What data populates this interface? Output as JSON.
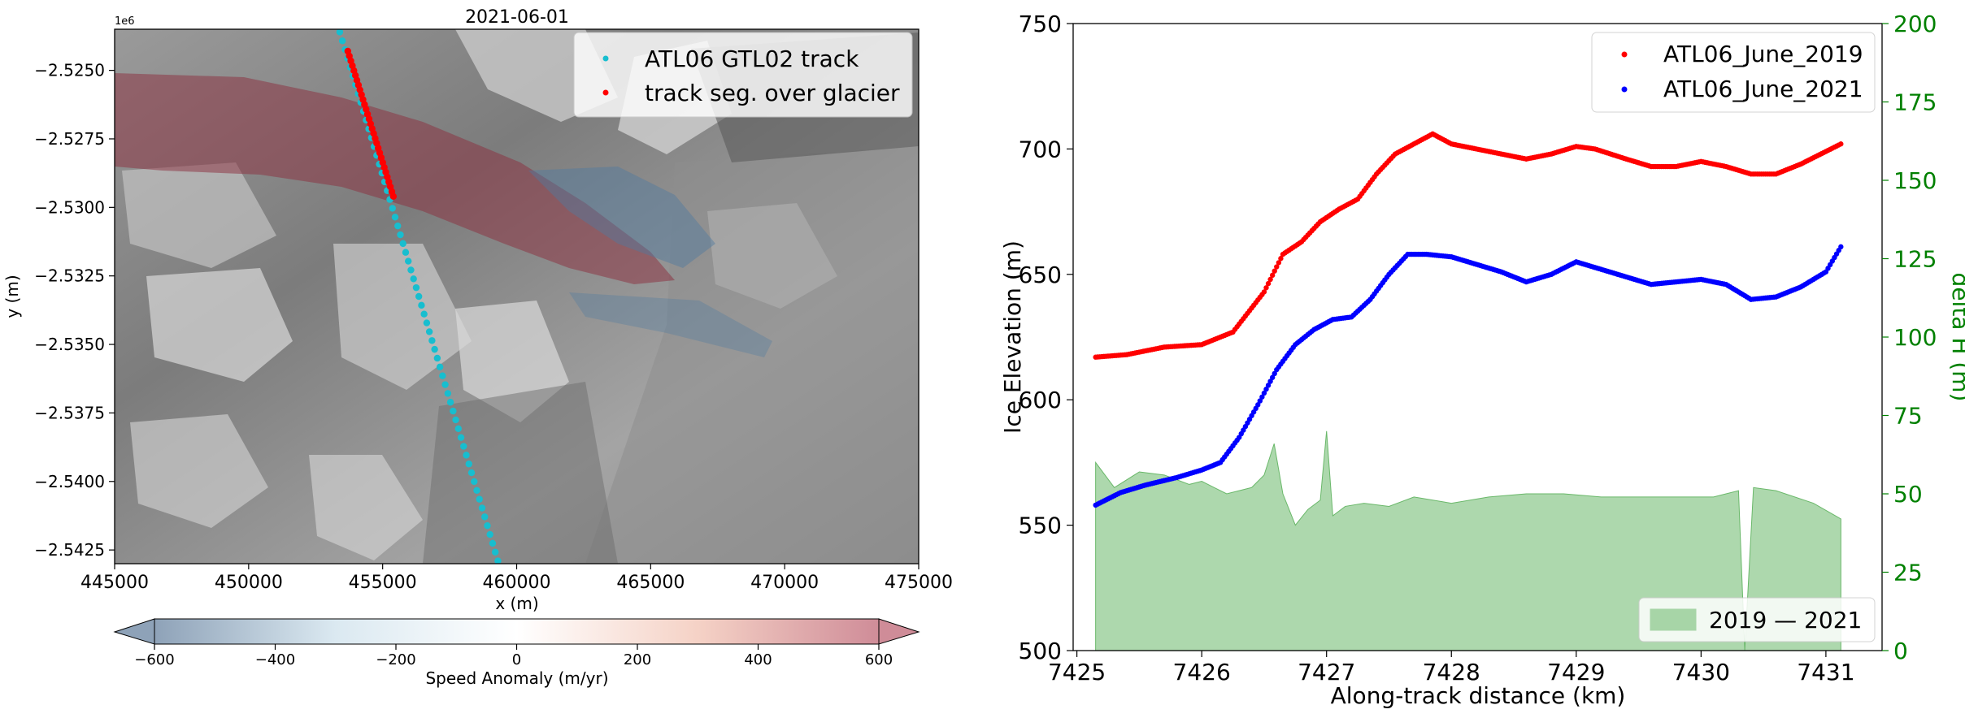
{
  "chart_data": [
    {
      "type": "scatter",
      "title": "2021-06-01",
      "xlabel": "x (m)",
      "ylabel": "y (m)",
      "offset_label": "1e6",
      "xlim": [
        445000,
        475000
      ],
      "ylim": [
        -2.543,
        -2.5235
      ],
      "xticks": [
        445000,
        450000,
        455000,
        460000,
        465000,
        470000,
        475000
      ],
      "xtick_labels": [
        "445000",
        "450000",
        "455000",
        "460000",
        "465000",
        "470000",
        "475000"
      ],
      "yticks": [
        -2.525,
        -2.5275,
        -2.53,
        -2.5325,
        -2.535,
        -2.5375,
        -2.54,
        -2.5425
      ],
      "ytick_labels": [
        "−2.5250",
        "−2.5275",
        "−2.5300",
        "−2.5325",
        "−2.5350",
        "−2.5375",
        "−2.5400",
        "−2.5425"
      ],
      "background": "grayscale satellite image with speed anomaly overlay",
      "series": [
        {
          "name": "ATL06 GTL02 track",
          "color": "#17becf",
          "x_start": 453400,
          "y_start": -2.5236,
          "x_end": 459300,
          "y_end": -2.5429
        },
        {
          "name": "track seg. over glacier",
          "color": "#ff0000",
          "x_start": 453700,
          "y_start": -2.5243,
          "x_end": 455400,
          "y_end": -2.5296
        }
      ],
      "legend": [
        "ATL06 GTL02 track",
        "track seg. over glacier"
      ],
      "legend_position": "top-right",
      "colorbar": {
        "label": "Speed Anomaly (m/yr)",
        "range": [
          -600,
          600
        ],
        "ticks": [
          -600,
          -400,
          -200,
          0,
          200,
          400,
          600
        ],
        "tick_labels": [
          "−600",
          "−400",
          "−200",
          "0",
          "200",
          "400",
          "600"
        ],
        "colors": [
          "#8ea2b8",
          "#dbe9f1",
          "#ffffff",
          "#f5d2c6",
          "#cf8c98"
        ],
        "extend": "both"
      }
    },
    {
      "type": "scatter",
      "xlabel": "Along-track distance (km)",
      "ylabel": "Ice Elevation (m)",
      "y2label": "delta H (m)",
      "xlim": [
        7424.97,
        7431.45
      ],
      "ylim": [
        500,
        750
      ],
      "y2lim": [
        0,
        200
      ],
      "xticks": [
        7425,
        7426,
        7427,
        7428,
        7429,
        7430,
        7431
      ],
      "yticks": [
        500,
        550,
        600,
        650,
        700,
        750
      ],
      "y2ticks": [
        0,
        25,
        50,
        75,
        100,
        125,
        150,
        175,
        200
      ],
      "series": [
        {
          "name": "ATL06_June_2019",
          "color": "#ff0000",
          "x": [
            7425.15,
            7425.4,
            7425.7,
            7426.0,
            7426.25,
            7426.5,
            7426.65,
            7426.8,
            7426.95,
            7427.1,
            7427.25,
            7427.4,
            7427.55,
            7427.7,
            7427.85,
            7428.0,
            7428.2,
            7428.4,
            7428.6,
            7428.8,
            7429.0,
            7429.15,
            7429.4,
            7429.6,
            7429.8,
            7430.0,
            7430.2,
            7430.4,
            7430.6,
            7430.8,
            7431.0,
            7431.12
          ],
          "y": [
            617,
            618,
            621,
            622,
            627,
            643,
            658,
            663,
            671,
            676,
            680,
            690,
            698,
            702,
            706,
            702,
            700,
            698,
            696,
            698,
            701,
            700,
            696,
            693,
            693,
            695,
            693,
            690,
            690,
            694,
            699,
            702
          ]
        },
        {
          "name": "ATL06_June_2021",
          "color": "#0000ff",
          "x": [
            7425.15,
            7425.35,
            7425.55,
            7425.8,
            7426.0,
            7426.15,
            7426.3,
            7426.45,
            7426.6,
            7426.75,
            7426.9,
            7427.05,
            7427.2,
            7427.35,
            7427.5,
            7427.65,
            7427.8,
            7428.0,
            7428.2,
            7428.4,
            7428.6,
            7428.8,
            7429.0,
            7429.2,
            7429.4,
            7429.6,
            7429.8,
            7430.0,
            7430.2,
            7430.4,
            7430.6,
            7430.8,
            7431.0,
            7431.12
          ],
          "y": [
            558,
            563,
            566,
            569,
            572,
            575,
            585,
            598,
            612,
            622,
            628,
            632,
            633,
            640,
            650,
            658,
            658,
            657,
            654,
            651,
            647,
            650,
            655,
            652,
            649,
            646,
            647,
            648,
            646,
            640,
            641,
            645,
            651,
            661
          ]
        },
        {
          "name": "2019 — 2021",
          "kind": "area",
          "axis": "y2",
          "color": "#6ab86a",
          "x": [
            7425.15,
            7425.3,
            7425.5,
            7425.7,
            7425.9,
            7426.0,
            7426.1,
            7426.2,
            7426.3,
            7426.4,
            7426.5,
            7426.58,
            7426.65,
            7426.75,
            7426.85,
            7426.95,
            7427.0,
            7427.05,
            7427.15,
            7427.3,
            7427.5,
            7427.7,
            7428.0,
            7428.3,
            7428.6,
            7428.9,
            7429.2,
            7429.5,
            7429.8,
            7430.1,
            7430.3,
            7430.35,
            7430.42,
            7430.6,
            7430.9,
            7431.12
          ],
          "y": [
            60,
            52,
            57,
            56,
            53,
            54,
            52,
            50,
            51,
            52,
            56,
            66,
            50,
            40,
            45,
            48,
            70,
            43,
            46,
            47,
            46,
            49,
            47,
            49,
            50,
            50,
            49,
            49,
            49,
            49,
            51,
            0,
            52,
            51,
            47,
            42
          ]
        }
      ],
      "legend": [
        "ATL06_June_2019",
        "ATL06_June_2021"
      ],
      "legend_position": "top-right",
      "legend2": [
        "2019 — 2021"
      ],
      "legend2_position": "bottom-right",
      "y2_color": "#008000"
    }
  ]
}
